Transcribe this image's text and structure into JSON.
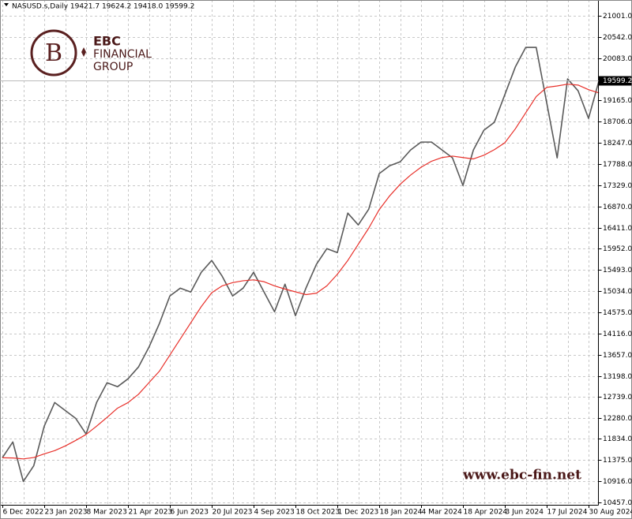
{
  "chart_data": {
    "type": "line",
    "subtitle": "NASUSD.s,Daily  19421.7 19624.2 19418.0 19599.2",
    "watermark": {
      "brand": "EBC",
      "line2": "FINANCIAL",
      "line3": "GROUP",
      "url": "www.ebc-fin.net"
    },
    "categories": [
      "6 Dec 2022",
      null,
      null,
      null,
      "23 Jan 2023",
      null,
      null,
      null,
      "8 Mar 2023",
      null,
      null,
      null,
      "21 Apr 2023",
      null,
      null,
      null,
      "6 Jun 2023",
      null,
      null,
      null,
      "20 Jul 2023",
      null,
      null,
      null,
      "4 Sep 2023",
      null,
      null,
      null,
      "18 Oct 2023",
      null,
      null,
      null,
      "1 Dec 2023",
      null,
      null,
      null,
      "18 Jan 2024",
      null,
      null,
      null,
      "4 Mar 2024",
      null,
      null,
      null,
      "18 Apr 2024",
      null,
      null,
      null,
      "3 Jun 2024",
      null,
      null,
      null,
      "17 Jul 2024",
      null,
      null,
      null,
      "30 Aug 2024",
      null
    ],
    "series": [
      {
        "color": "#5a5a5a",
        "values": [
          11425,
          11767,
          10912,
          11254,
          12110,
          12622,
          12451,
          12280,
          11938,
          12622,
          13050,
          12964,
          13135,
          13391,
          13819,
          14332,
          14930,
          15100,
          15016,
          15443,
          15700,
          15358,
          14930,
          15100,
          15443,
          15016,
          14588,
          15186,
          14503,
          15100,
          15614,
          15956,
          15871,
          16726,
          16469,
          16811,
          17581,
          17752,
          17838,
          18094,
          18265,
          18265,
          18094,
          17923,
          17325,
          18094,
          18522,
          18693,
          19291,
          19890,
          20317,
          20317,
          19120,
          17923,
          19633,
          19377,
          18779,
          19599
        ]
      },
      {
        "color": "#e8302a",
        "values": [
          11425,
          11420,
          11400,
          11430,
          11510,
          11580,
          11680,
          11800,
          11930,
          12110,
          12300,
          12500,
          12620,
          12800,
          13050,
          13300,
          13650,
          14000,
          14350,
          14700,
          15000,
          15150,
          15220,
          15260,
          15280,
          15240,
          15150,
          15080,
          15020,
          14960,
          14990,
          15150,
          15400,
          15700,
          16050,
          16400,
          16800,
          17100,
          17350,
          17550,
          17720,
          17850,
          17930,
          17960,
          17930,
          17900,
          17980,
          18100,
          18250,
          18550,
          18900,
          19250,
          19450,
          19480,
          19520,
          19500,
          19400,
          19330
        ]
      }
    ],
    "last_price": {
      "value": 19599.2,
      "label": "19599.2"
    },
    "ylim": [
      10406,
      21343
    ],
    "yticks": [
      {
        "value": 21001,
        "label": "21001.0"
      },
      {
        "value": 20542,
        "label": "20542.0"
      },
      {
        "value": 20083,
        "label": "20083.0"
      },
      {
        "value": 19165,
        "label": "19165.0"
      },
      {
        "value": 18706,
        "label": "18706.0"
      },
      {
        "value": 18247,
        "label": "18247.0"
      },
      {
        "value": 17788,
        "label": "17788.0"
      },
      {
        "value": 17329,
        "label": "17329.0"
      },
      {
        "value": 16870,
        "label": "16870.0"
      },
      {
        "value": 16411,
        "label": "16411.0"
      },
      {
        "value": 15952,
        "label": "15952.0"
      },
      {
        "value": 15493,
        "label": "15493.0"
      },
      {
        "value": 15034,
        "label": "15034.0"
      },
      {
        "value": 14575,
        "label": "14575.0"
      },
      {
        "value": 14116,
        "label": "14116.0"
      },
      {
        "value": 13657,
        "label": "13657.0"
      },
      {
        "value": 13198,
        "label": "13198.0"
      },
      {
        "value": 12739,
        "label": "12739.0"
      },
      {
        "value": 12280,
        "label": "12280.0"
      },
      {
        "value": 11834,
        "label": "11834.0"
      },
      {
        "value": 11375,
        "label": "11375.0"
      },
      {
        "value": 10916,
        "label": "10916.0"
      },
      {
        "value": 10457,
        "label": "10457.0"
      }
    ],
    "grid": true
  }
}
